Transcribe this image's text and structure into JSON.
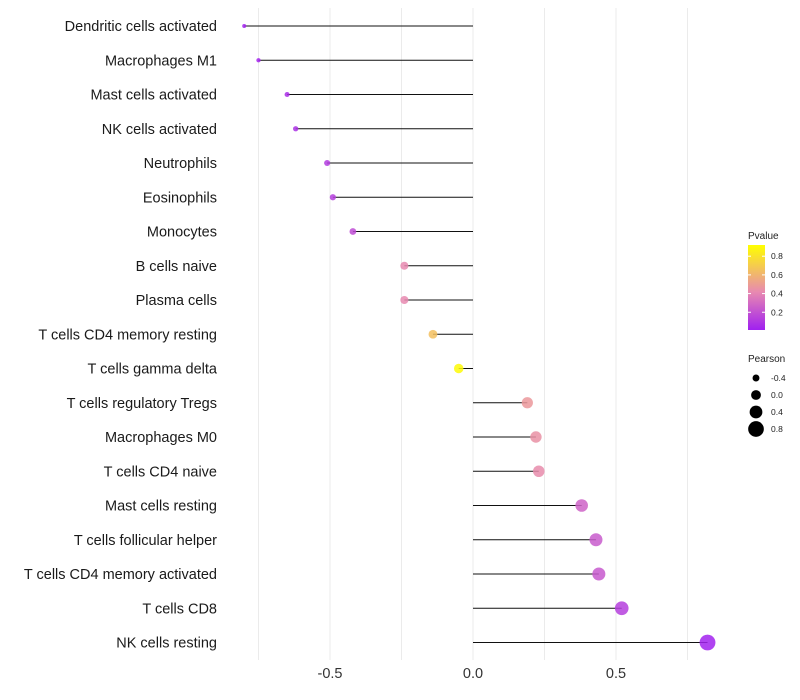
{
  "chart_data": {
    "type": "lollipop",
    "title": "",
    "xlabel": "",
    "ylabel": "",
    "xlim": [
      -0.8,
      0.8
    ],
    "x_ticks": [
      -0.5,
      0.0,
      0.5
    ],
    "x_tick_labels": [
      "-0.5",
      "0.0",
      "0.5"
    ],
    "grid": true,
    "categories": [
      "Dendritic cells activated",
      "Macrophages M1",
      "Mast cells activated",
      "NK cells activated",
      "Neutrophils",
      "Eosinophils",
      "Monocytes",
      "B cells naive",
      "Plasma cells",
      "T cells CD4 memory resting",
      "T cells gamma delta",
      "T cells regulatory  Tregs ",
      "Macrophages M0",
      "T cells CD4 naive",
      "Mast cells resting",
      "T cells follicular helper",
      "T cells CD4 memory activated",
      "T cells CD8",
      "NK cells resting"
    ],
    "pearson": [
      -0.8,
      -0.75,
      -0.65,
      -0.62,
      -0.51,
      -0.49,
      -0.42,
      -0.24,
      -0.24,
      -0.14,
      -0.05,
      0.19,
      0.22,
      0.23,
      0.38,
      0.43,
      0.44,
      0.52,
      0.82
    ],
    "pvalue": [
      0.02,
      0.03,
      0.06,
      0.08,
      0.12,
      0.13,
      0.18,
      0.42,
      0.42,
      0.65,
      0.9,
      0.48,
      0.45,
      0.43,
      0.27,
      0.24,
      0.23,
      0.13,
      0.02
    ],
    "color_legend": {
      "title": "Pvalue",
      "ticks": [
        0.8,
        0.6,
        0.4,
        0.2
      ],
      "tick_labels": [
        "0.8",
        "0.6",
        "0.4",
        "0.2"
      ],
      "range": [
        0.01,
        0.92
      ],
      "low_color": "#a020f0",
      "high_color": "#ffff00"
    },
    "size_legend": {
      "title": "Pearson",
      "values": [
        -0.4,
        0.0,
        0.4,
        0.8
      ],
      "labels": [
        "-0.4",
        "0.0",
        "0.4",
        "0.8"
      ]
    },
    "legend_position": "right"
  }
}
